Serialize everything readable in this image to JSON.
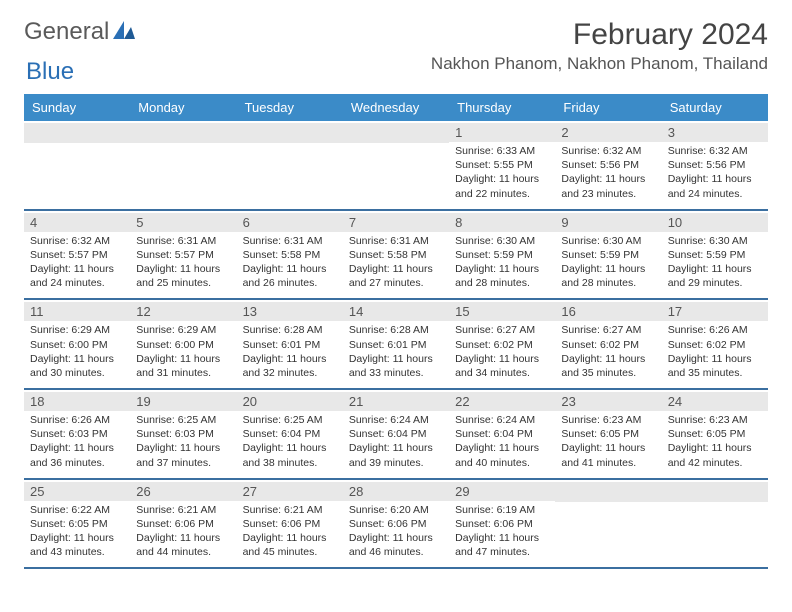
{
  "logo": {
    "part1": "General",
    "part2": "Blue"
  },
  "title": "February 2024",
  "location": "Nakhon Phanom, Nakhon Phanom, Thailand",
  "colors": {
    "header_bg": "#3b8bc8",
    "header_text": "#ffffff",
    "row_border": "#3b6fa0",
    "daynum_bg": "#e8e8e8",
    "text": "#333333",
    "logo_gray": "#5a5a5a",
    "logo_blue": "#2a6fb5"
  },
  "day_headers": [
    "Sunday",
    "Monday",
    "Tuesday",
    "Wednesday",
    "Thursday",
    "Friday",
    "Saturday"
  ],
  "weeks": [
    [
      {
        "empty": true
      },
      {
        "empty": true
      },
      {
        "empty": true
      },
      {
        "empty": true
      },
      {
        "num": "1",
        "sunrise": "Sunrise: 6:33 AM",
        "sunset": "Sunset: 5:55 PM",
        "daylight1": "Daylight: 11 hours",
        "daylight2": "and 22 minutes."
      },
      {
        "num": "2",
        "sunrise": "Sunrise: 6:32 AM",
        "sunset": "Sunset: 5:56 PM",
        "daylight1": "Daylight: 11 hours",
        "daylight2": "and 23 minutes."
      },
      {
        "num": "3",
        "sunrise": "Sunrise: 6:32 AM",
        "sunset": "Sunset: 5:56 PM",
        "daylight1": "Daylight: 11 hours",
        "daylight2": "and 24 minutes."
      }
    ],
    [
      {
        "num": "4",
        "sunrise": "Sunrise: 6:32 AM",
        "sunset": "Sunset: 5:57 PM",
        "daylight1": "Daylight: 11 hours",
        "daylight2": "and 24 minutes."
      },
      {
        "num": "5",
        "sunrise": "Sunrise: 6:31 AM",
        "sunset": "Sunset: 5:57 PM",
        "daylight1": "Daylight: 11 hours",
        "daylight2": "and 25 minutes."
      },
      {
        "num": "6",
        "sunrise": "Sunrise: 6:31 AM",
        "sunset": "Sunset: 5:58 PM",
        "daylight1": "Daylight: 11 hours",
        "daylight2": "and 26 minutes."
      },
      {
        "num": "7",
        "sunrise": "Sunrise: 6:31 AM",
        "sunset": "Sunset: 5:58 PM",
        "daylight1": "Daylight: 11 hours",
        "daylight2": "and 27 minutes."
      },
      {
        "num": "8",
        "sunrise": "Sunrise: 6:30 AM",
        "sunset": "Sunset: 5:59 PM",
        "daylight1": "Daylight: 11 hours",
        "daylight2": "and 28 minutes."
      },
      {
        "num": "9",
        "sunrise": "Sunrise: 6:30 AM",
        "sunset": "Sunset: 5:59 PM",
        "daylight1": "Daylight: 11 hours",
        "daylight2": "and 28 minutes."
      },
      {
        "num": "10",
        "sunrise": "Sunrise: 6:30 AM",
        "sunset": "Sunset: 5:59 PM",
        "daylight1": "Daylight: 11 hours",
        "daylight2": "and 29 minutes."
      }
    ],
    [
      {
        "num": "11",
        "sunrise": "Sunrise: 6:29 AM",
        "sunset": "Sunset: 6:00 PM",
        "daylight1": "Daylight: 11 hours",
        "daylight2": "and 30 minutes."
      },
      {
        "num": "12",
        "sunrise": "Sunrise: 6:29 AM",
        "sunset": "Sunset: 6:00 PM",
        "daylight1": "Daylight: 11 hours",
        "daylight2": "and 31 minutes."
      },
      {
        "num": "13",
        "sunrise": "Sunrise: 6:28 AM",
        "sunset": "Sunset: 6:01 PM",
        "daylight1": "Daylight: 11 hours",
        "daylight2": "and 32 minutes."
      },
      {
        "num": "14",
        "sunrise": "Sunrise: 6:28 AM",
        "sunset": "Sunset: 6:01 PM",
        "daylight1": "Daylight: 11 hours",
        "daylight2": "and 33 minutes."
      },
      {
        "num": "15",
        "sunrise": "Sunrise: 6:27 AM",
        "sunset": "Sunset: 6:02 PM",
        "daylight1": "Daylight: 11 hours",
        "daylight2": "and 34 minutes."
      },
      {
        "num": "16",
        "sunrise": "Sunrise: 6:27 AM",
        "sunset": "Sunset: 6:02 PM",
        "daylight1": "Daylight: 11 hours",
        "daylight2": "and 35 minutes."
      },
      {
        "num": "17",
        "sunrise": "Sunrise: 6:26 AM",
        "sunset": "Sunset: 6:02 PM",
        "daylight1": "Daylight: 11 hours",
        "daylight2": "and 35 minutes."
      }
    ],
    [
      {
        "num": "18",
        "sunrise": "Sunrise: 6:26 AM",
        "sunset": "Sunset: 6:03 PM",
        "daylight1": "Daylight: 11 hours",
        "daylight2": "and 36 minutes."
      },
      {
        "num": "19",
        "sunrise": "Sunrise: 6:25 AM",
        "sunset": "Sunset: 6:03 PM",
        "daylight1": "Daylight: 11 hours",
        "daylight2": "and 37 minutes."
      },
      {
        "num": "20",
        "sunrise": "Sunrise: 6:25 AM",
        "sunset": "Sunset: 6:04 PM",
        "daylight1": "Daylight: 11 hours",
        "daylight2": "and 38 minutes."
      },
      {
        "num": "21",
        "sunrise": "Sunrise: 6:24 AM",
        "sunset": "Sunset: 6:04 PM",
        "daylight1": "Daylight: 11 hours",
        "daylight2": "and 39 minutes."
      },
      {
        "num": "22",
        "sunrise": "Sunrise: 6:24 AM",
        "sunset": "Sunset: 6:04 PM",
        "daylight1": "Daylight: 11 hours",
        "daylight2": "and 40 minutes."
      },
      {
        "num": "23",
        "sunrise": "Sunrise: 6:23 AM",
        "sunset": "Sunset: 6:05 PM",
        "daylight1": "Daylight: 11 hours",
        "daylight2": "and 41 minutes."
      },
      {
        "num": "24",
        "sunrise": "Sunrise: 6:23 AM",
        "sunset": "Sunset: 6:05 PM",
        "daylight1": "Daylight: 11 hours",
        "daylight2": "and 42 minutes."
      }
    ],
    [
      {
        "num": "25",
        "sunrise": "Sunrise: 6:22 AM",
        "sunset": "Sunset: 6:05 PM",
        "daylight1": "Daylight: 11 hours",
        "daylight2": "and 43 minutes."
      },
      {
        "num": "26",
        "sunrise": "Sunrise: 6:21 AM",
        "sunset": "Sunset: 6:06 PM",
        "daylight1": "Daylight: 11 hours",
        "daylight2": "and 44 minutes."
      },
      {
        "num": "27",
        "sunrise": "Sunrise: 6:21 AM",
        "sunset": "Sunset: 6:06 PM",
        "daylight1": "Daylight: 11 hours",
        "daylight2": "and 45 minutes."
      },
      {
        "num": "28",
        "sunrise": "Sunrise: 6:20 AM",
        "sunset": "Sunset: 6:06 PM",
        "daylight1": "Daylight: 11 hours",
        "daylight2": "and 46 minutes."
      },
      {
        "num": "29",
        "sunrise": "Sunrise: 6:19 AM",
        "sunset": "Sunset: 6:06 PM",
        "daylight1": "Daylight: 11 hours",
        "daylight2": "and 47 minutes."
      },
      {
        "empty": true
      },
      {
        "empty": true
      }
    ]
  ]
}
